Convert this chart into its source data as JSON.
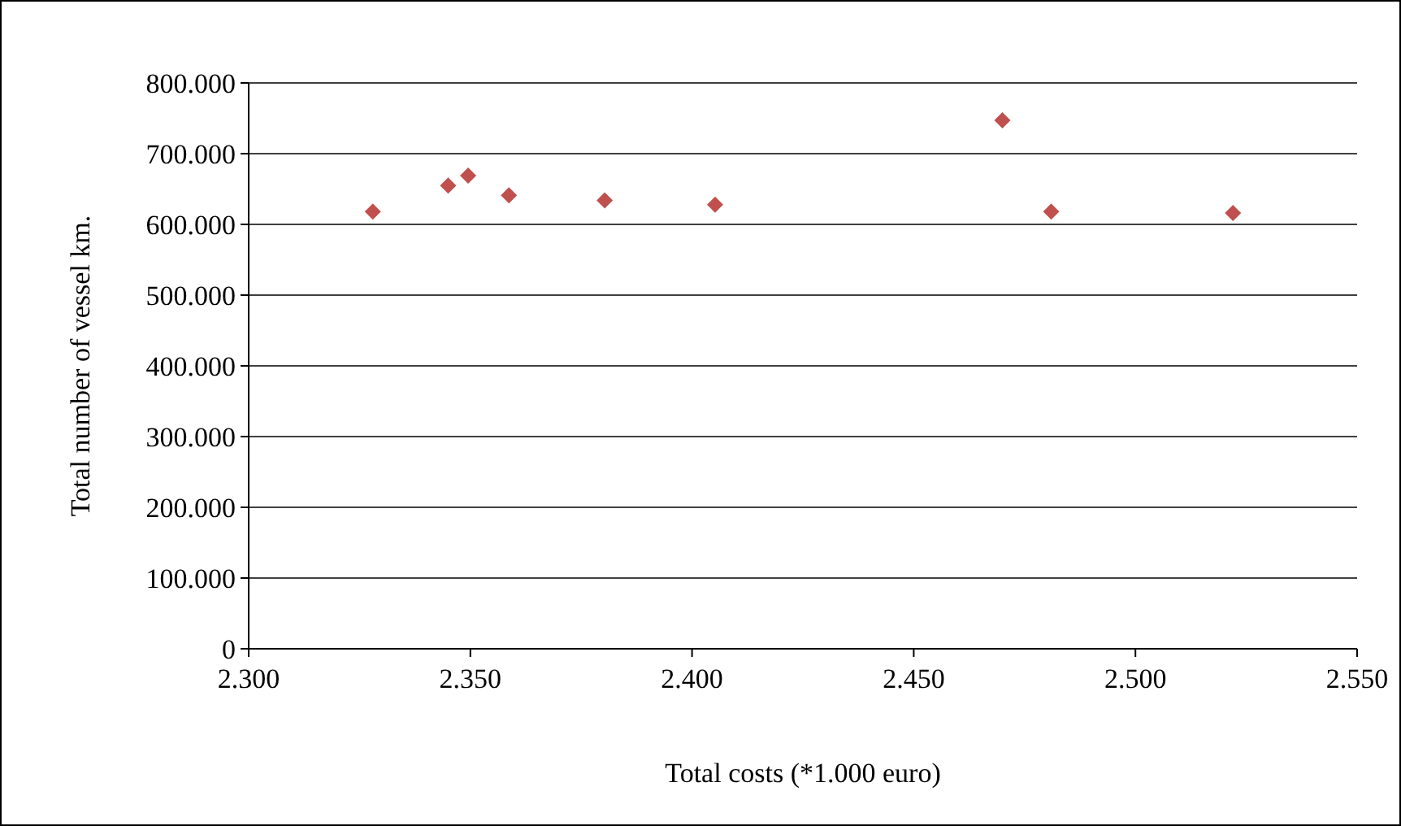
{
  "chart_data": {
    "type": "scatter",
    "xlabel": "Total costs (*1.000 euro)",
    "ylabel": "Total number of vessel km.",
    "series": [
      {
        "color": "#c0504d",
        "x": [
          2328,
          2345,
          2349.5,
          2358.7,
          2380.3,
          2405.2,
          2470,
          2481,
          2522
        ],
        "values": [
          618000,
          655000,
          669000,
          641000,
          634000,
          628000,
          747000,
          618000,
          616000
        ]
      }
    ],
    "xlim": [
      2300,
      2550
    ],
    "ylim": [
      0,
      800000
    ],
    "xticks": [
      {
        "value": 2300,
        "label": "2.300"
      },
      {
        "value": 2350,
        "label": "2.350"
      },
      {
        "value": 2400,
        "label": "2.400"
      },
      {
        "value": 2450,
        "label": "2.450"
      },
      {
        "value": 2500,
        "label": "2.500"
      },
      {
        "value": 2550,
        "label": "2.550"
      }
    ],
    "yticks": [
      0,
      {
        "value": 100000,
        "label": "100.000"
      },
      {
        "value": 200000,
        "label": "200.000"
      },
      {
        "value": 300000,
        "label": "300.000"
      },
      {
        "value": 400000,
        "label": "400.000"
      },
      {
        "value": 500000,
        "label": "500.000"
      },
      {
        "value": 600000,
        "label": "600.000"
      },
      {
        "value": 700000,
        "label": "700.000"
      },
      {
        "value": 800000,
        "label": "800.000"
      }
    ],
    "grid": "y",
    "marker": "diamond"
  }
}
